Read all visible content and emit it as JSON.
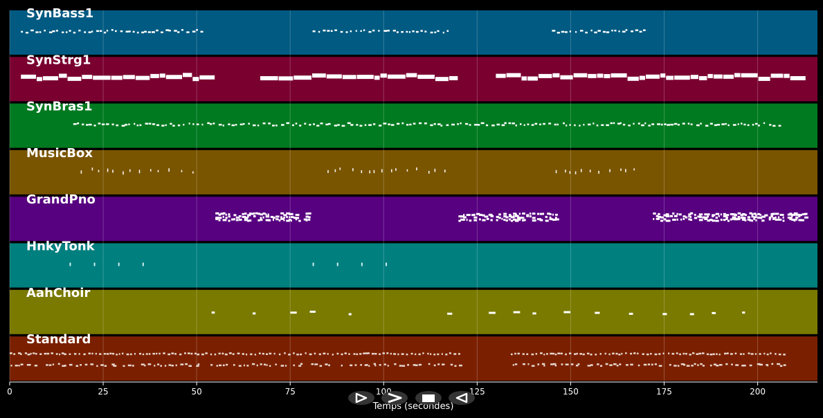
{
  "axis": {
    "xlabel": "Temps (secondes)",
    "xlim": [
      0,
      216
    ],
    "ticks": [
      0,
      25,
      50,
      75,
      100,
      125,
      150,
      175,
      200
    ]
  },
  "tracks": [
    {
      "name": "SynBass1",
      "color": "#005a82",
      "phrases": [
        [
          3,
          52
        ],
        [
          81,
          117
        ],
        [
          145,
          170
        ]
      ],
      "style": "small",
      "rows": 1
    },
    {
      "name": "SynStrg1",
      "color": "#7a0030",
      "phrases": [
        [
          3,
          55
        ],
        [
          67,
          120
        ],
        [
          130,
          207
        ],
        [
          207,
          213
        ]
      ],
      "style": "legato",
      "rows": 1
    },
    {
      "name": "SynBras1",
      "color": "#007a20",
      "phrases": [
        [
          17,
          207
        ]
      ],
      "style": "small",
      "rows": 1
    },
    {
      "name": "MusicBox",
      "color": "#7a5500",
      "phrases": [
        [
          19,
          51
        ],
        [
          85,
          118
        ],
        [
          146,
          170
        ]
      ],
      "style": "sparse",
      "rows": 1
    },
    {
      "name": "GrandPno",
      "color": "#570080",
      "phrases": [
        [
          55,
          80
        ],
        [
          120,
          146
        ],
        [
          172,
          207
        ],
        [
          208,
          213
        ]
      ],
      "style": "dense",
      "rows": 1
    },
    {
      "name": "HnkyTonk",
      "color": "#007f7f",
      "phrases": [
        [
          16,
          38
        ],
        [
          81,
          103
        ]
      ],
      "style": "accent",
      "rows": 1
    },
    {
      "name": "AahChoir",
      "color": "#7a7a00",
      "phrases": [
        [
          54,
          100
        ],
        [
          117,
          196
        ]
      ],
      "style": "blips",
      "rows": 1
    },
    {
      "name": "Standard",
      "color": "#7a2000",
      "phrases": [
        [
          0,
          120
        ],
        [
          134,
          207
        ]
      ],
      "style": "drums",
      "rows": 2
    }
  ],
  "controls": [
    {
      "name": "play-button",
      "glyph": "play"
    },
    {
      "name": "fast-forward-button",
      "glyph": "fast-forward"
    },
    {
      "name": "stop-button",
      "glyph": "stop"
    },
    {
      "name": "rewind-button",
      "glyph": "rewind"
    }
  ]
}
